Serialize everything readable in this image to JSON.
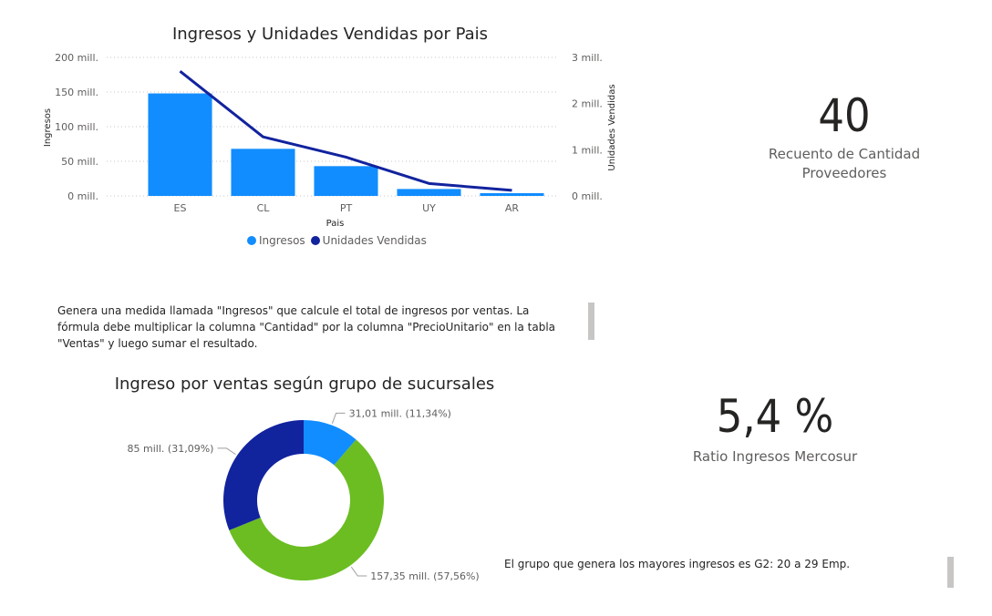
{
  "combo": {
    "title": "Ingresos y Unidades Vendidas por Pais",
    "legend": [
      {
        "label": "Ingresos",
        "color": "#118dff"
      },
      {
        "label": "Unidades Vendidas",
        "color": "#12239e"
      }
    ]
  },
  "kpi1": {
    "value": "40",
    "label_line1": "Recuento de Cantidad",
    "label_line2": "Proveedores"
  },
  "kpi2": {
    "value": "5,4 %",
    "label": "Ratio Ingresos Mercosur"
  },
  "note1": "Genera una medida llamada \"Ingresos\" que calcule el total de ingresos por ventas. La fórmula debe multiplicar la columna \"Cantidad\" por la columna \"PrecioUnitario\" en la tabla \"Ventas\" y luego sumar el resultado.",
  "note2": "El grupo que genera los mayores ingresos es G2: 20 a 29 Emp.",
  "donut": {
    "title": "Ingreso por ventas según grupo de sucursales"
  },
  "chart_data": [
    {
      "type": "bar",
      "title": "Ingresos y Unidades Vendidas por Pais",
      "xlabel": "Pais",
      "ylabel": "Ingresos",
      "y2label": "Unidades Vendidas",
      "categories": [
        "ES",
        "CL",
        "PT",
        "UY",
        "AR"
      ],
      "ylim": [
        0,
        200
      ],
      "y2lim": [
        0,
        3
      ],
      "yticks": [
        "0 mill.",
        "50 mill.",
        "100 mill.",
        "150 mill.",
        "200 mill."
      ],
      "y2ticks": [
        "0 mill.",
        "1 mill.",
        "2 mill.",
        "3 mill."
      ],
      "series": [
        {
          "name": "Ingresos",
          "type": "bar",
          "axis": "left",
          "color": "#118dff",
          "values": [
            148,
            68,
            43,
            10,
            4
          ]
        },
        {
          "name": "Unidades Vendidas",
          "type": "line",
          "axis": "right",
          "color": "#12239e",
          "values": [
            2.7,
            1.28,
            0.84,
            0.27,
            0.12
          ]
        }
      ],
      "legend": "bottom",
      "grid": true
    },
    {
      "type": "pie",
      "title": "Ingreso por ventas según grupo de sucursales",
      "slices": [
        {
          "value": 31.01,
          "label": "31,01 mill. (11,34%)",
          "color": "#118dff"
        },
        {
          "value": 157.35,
          "label": "157,35 mill. (57,56%)",
          "color": "#6bbd22"
        },
        {
          "value": 85,
          "label": "85 mill. (31,09%)",
          "color": "#12239e"
        }
      ]
    }
  ]
}
